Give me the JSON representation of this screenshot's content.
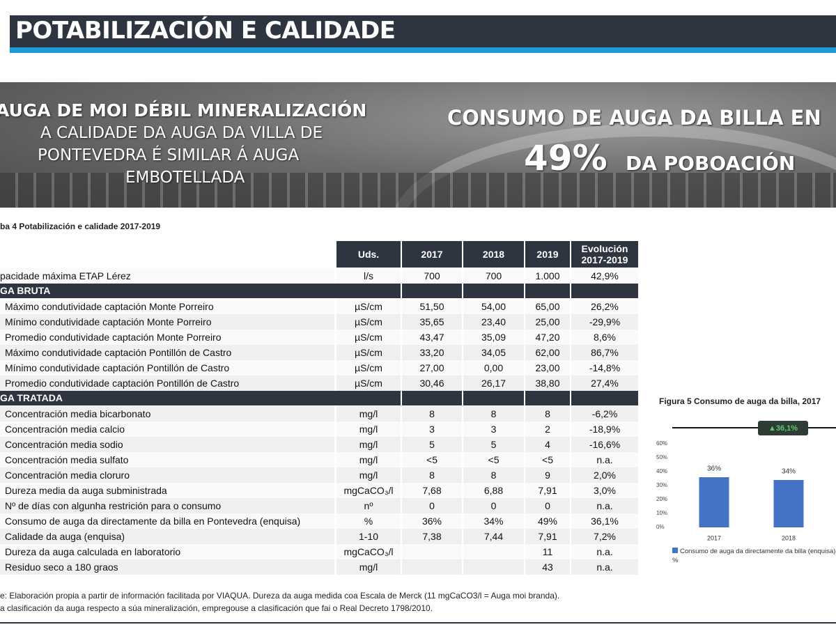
{
  "header": {
    "title": "POTABILIZACIÓN E CALIDADE"
  },
  "banner": {
    "left_title": "AUGA DE MOI DÉBIL MINERALIZACIÓN",
    "left_text": [
      "A CALIDADE DA AUGA DA VILLA DE",
      "PONTEVEDRA É SIMILAR Á AUGA",
      "EMBOTELLADA"
    ],
    "right_title": "CONSUMO DE AUGA DA BILLA EN",
    "right_value": "49%",
    "right_text": "DA POBOACIÓN"
  },
  "table": {
    "caption": "ba 4 Potabilización e calidade 2017-2019",
    "columns": [
      "Uds.",
      "2017",
      "2018",
      "2019",
      "Evolución 2017-2019"
    ],
    "rows": [
      {
        "label": "pacidade máxima ETAP Lérez",
        "cells": [
          "l/s",
          "700",
          "700",
          "1.000",
          "42,9%"
        ]
      },
      {
        "section": "GA BRUTA"
      },
      {
        "label": "Máximo condutividade captación Monte Porreiro",
        "cells": [
          "µS/cm",
          "51,50",
          "54,00",
          "65,00",
          "26,2%"
        ]
      },
      {
        "label": "Mínimo condutividade captación Monte Porreiro",
        "cells": [
          "µS/cm",
          "35,65",
          "23,40",
          "25,00",
          "-29,9%"
        ]
      },
      {
        "label": "Promedio condutividade captación Monte Porreiro",
        "cells": [
          "µS/cm",
          "43,47",
          "35,09",
          "47,20",
          "8,6%"
        ]
      },
      {
        "label": "Máximo condutividade captación Pontillón de Castro",
        "cells": [
          "µS/cm",
          "33,20",
          "34,05",
          "62,00",
          "86,7%"
        ]
      },
      {
        "label": "Mínimo condutividade captación Pontillón de Castro",
        "cells": [
          "µS/cm",
          "27,00",
          "0,00",
          "23,00",
          "-14,8%"
        ]
      },
      {
        "label": "Promedio condutividade captación Pontillón de Castro",
        "cells": [
          "µS/cm",
          "30,46",
          "26,17",
          "38,80",
          "27,4%"
        ]
      },
      {
        "section": "GA TRATADA"
      },
      {
        "label": "Concentración media bicarbonato",
        "cells": [
          "mg/l",
          "8",
          "8",
          "8",
          "-6,2%"
        ]
      },
      {
        "label": "Concentración media calcio",
        "cells": [
          "mg/l",
          "3",
          "3",
          "2",
          "-18,9%"
        ]
      },
      {
        "label": "Concentración media sodio",
        "cells": [
          "mg/l",
          "5",
          "5",
          "4",
          "-16,6%"
        ]
      },
      {
        "label": "Concentración media sulfato",
        "cells": [
          "mg/l",
          "<5",
          "<5",
          "<5",
          "n.a."
        ]
      },
      {
        "label": "Concentración media cloruro",
        "cells": [
          "mg/l",
          "8",
          "8",
          "9",
          "2,0%"
        ]
      },
      {
        "label": "Dureza media da auga subministrada",
        "cells": [
          "mgCaCO₃/l",
          "7,68",
          "6,88",
          "7,91",
          "3,0%"
        ]
      },
      {
        "label": "Nº de días con algunha restrición para o consumo",
        "cells": [
          "nº",
          "0",
          "0",
          "0",
          "n.a."
        ]
      },
      {
        "label": "Consumo de auga da directamente da billa en Pontevedra (enquisa)",
        "cells": [
          "%",
          "36%",
          "34%",
          "49%",
          "36,1%"
        ]
      },
      {
        "label": "Calidade da auga (enquisa)",
        "cells": [
          "1-10",
          "7,38",
          "7,44",
          "7,91",
          "7,2%"
        ]
      },
      {
        "label": "Dureza da auga calculada en laboratorio",
        "cells": [
          "mgCaCO₃/l",
          null,
          null,
          "11",
          "n.a."
        ]
      },
      {
        "label": "Residuo seco a 180 graos",
        "cells": [
          "mg/l",
          null,
          null,
          "43",
          "n.a."
        ]
      }
    ]
  },
  "notes": [
    "e: Elaboración propia a partir de información facilitada por VIAQUA. Dureza da auga medida coa Escala de Merck (11 mgCaCO3/l = Auga moi branda).",
    "a clasificación da auga respecto a súa mineralización, empregouse a clasificación que fai o  Real Decreto 1798/2010."
  ],
  "chart_data": {
    "type": "bar",
    "title": "Figura 5 Consumo de auga da billa, 2017",
    "annotation": "▲36,1%",
    "categories": [
      "2017",
      "2018"
    ],
    "series": [
      {
        "name": "Consumo de auga da directamente da billa (enquisa) %",
        "color": "#4472c4",
        "values": [
          36,
          34
        ],
        "value_labels": [
          "36%",
          "34%"
        ]
      }
    ],
    "ylim": [
      0,
      60
    ],
    "yticks": [
      {
        "value": 0,
        "label": "0%"
      },
      {
        "value": 10,
        "label": "10%"
      },
      {
        "value": 20,
        "label": "20%"
      },
      {
        "value": 30,
        "label": "30%"
      },
      {
        "value": 40,
        "label": "40%"
      },
      {
        "value": 50,
        "label": "50%"
      },
      {
        "value": 60,
        "label": "60%"
      }
    ]
  }
}
